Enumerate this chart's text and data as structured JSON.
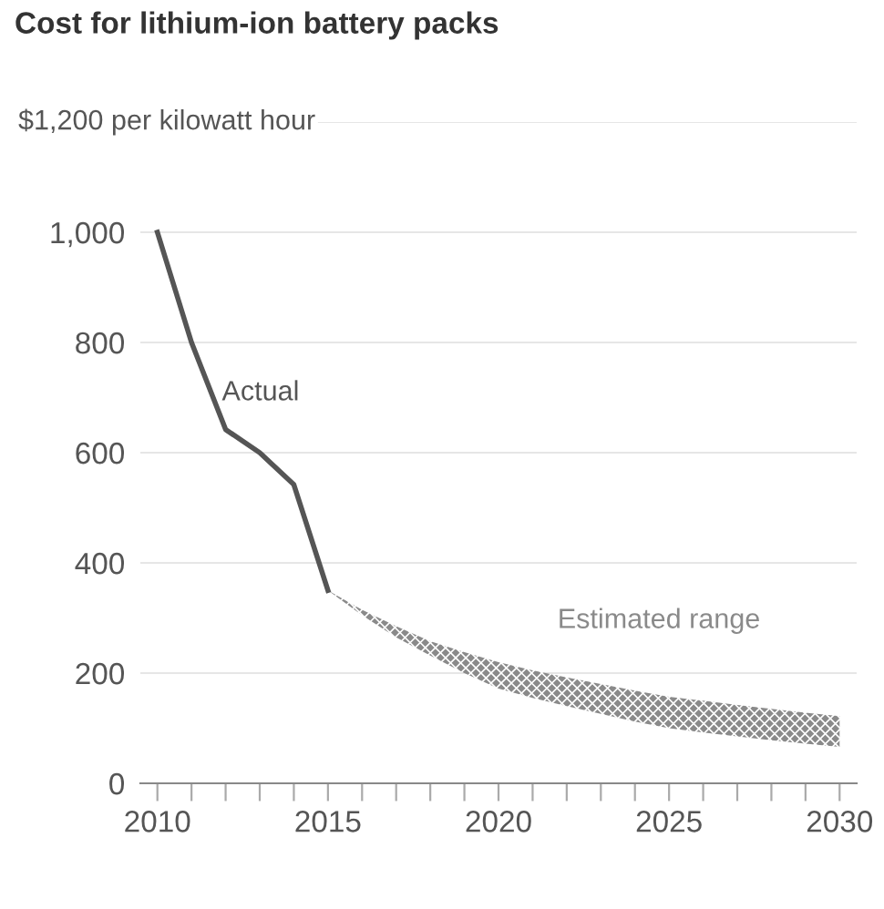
{
  "chart_data": {
    "type": "line",
    "title": "Cost for lithium-ion battery packs",
    "series": [
      {
        "name": "Actual",
        "color": "#555555",
        "x": [
          2010,
          2011,
          2012,
          2013,
          2014,
          2015
        ],
        "values": [
          1000,
          800,
          642,
          600,
          542,
          350
        ]
      },
      {
        "name": "Estimated range",
        "type": "line",
        "color": "#8a8a8a",
        "x": [
          2015,
          2016,
          2017,
          2018,
          2019,
          2020,
          2021,
          2022,
          2023,
          2024,
          2025,
          2026,
          2027,
          2028,
          2029,
          2030
        ],
        "lower": [
          350,
          305,
          265,
          232,
          200,
          172,
          155,
          140,
          126,
          112,
          100,
          92,
          85,
          78,
          72,
          66
        ],
        "upper": [
          350,
          315,
          285,
          258,
          238,
          220,
          205,
          192,
          180,
          168,
          157,
          150,
          142,
          135,
          128,
          122
        ],
        "values": [
          null,
          null,
          null,
          null,
          null,
          null,
          null,
          null,
          null,
          null,
          null,
          null,
          null,
          null,
          null,
          null
        ]
      }
    ],
    "xlim": [
      2009.5,
      2030.5
    ],
    "xticks": [
      2010,
      {
        "value": 2011,
        "label": null
      },
      {
        "value": 2012,
        "label": null
      },
      {
        "value": 2013,
        "label": null
      },
      {
        "value": 2014,
        "label": null
      },
      2015,
      {
        "value": 2016,
        "label": null
      },
      {
        "value": 2017,
        "label": null
      },
      {
        "value": 2018,
        "label": null
      },
      {
        "value": 2019,
        "label": null
      },
      2020,
      {
        "value": 2021,
        "label": null
      },
      {
        "value": 2022,
        "label": null
      },
      {
        "value": 2023,
        "label": null
      },
      {
        "value": 2024,
        "label": null
      },
      2025,
      {
        "value": 2026,
        "label": null
      },
      {
        "value": 2027,
        "label": null
      },
      {
        "value": 2028,
        "label": null
      },
      {
        "value": 2029,
        "label": null
      },
      2030
    ],
    "ylim": [
      0,
      1200
    ],
    "yticks": [
      0,
      200,
      400,
      600,
      800,
      {
        "value": 1000,
        "label": "1,000"
      },
      {
        "value": 1200,
        "label": null
      }
    ],
    "ylabel": "$1,200 per kilowatt hour",
    "grid": "y",
    "legend": false
  }
}
